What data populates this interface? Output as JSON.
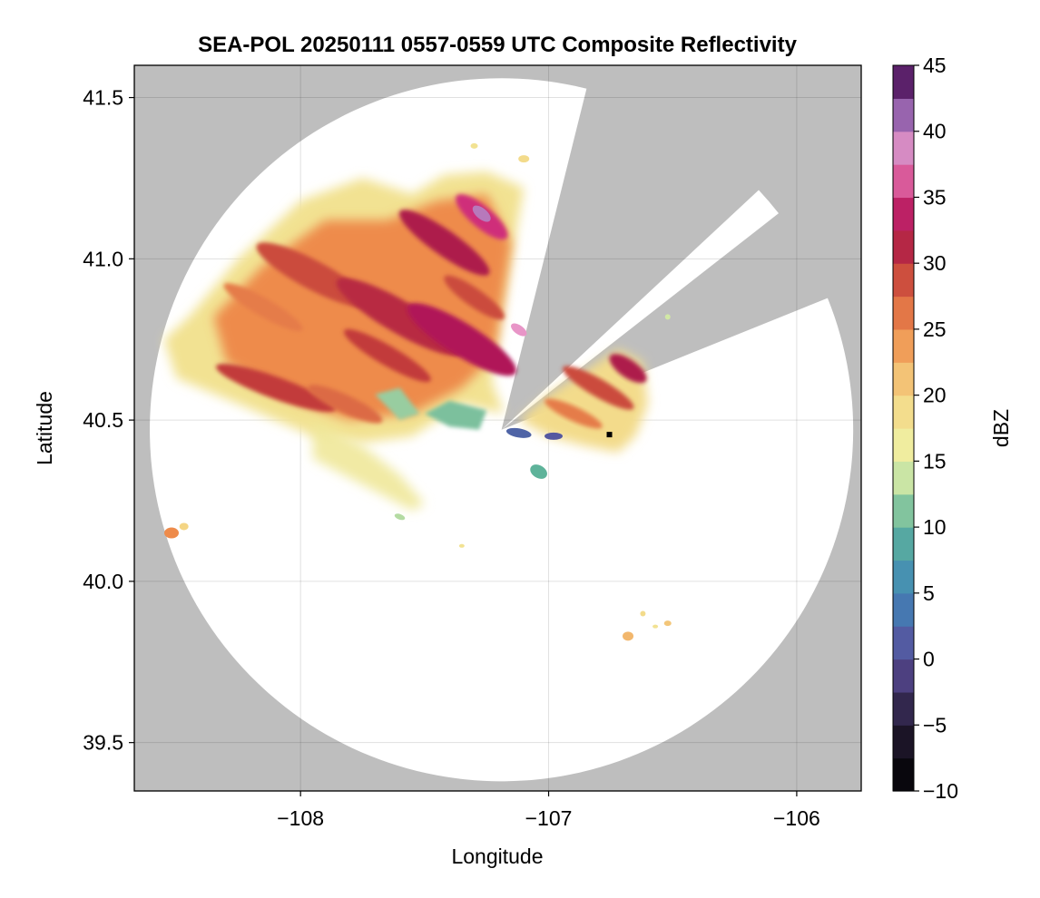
{
  "chart_data": {
    "type": "heatmap",
    "title": "SEA-POL 20250111 0557-0559 UTC Composite Reflectivity",
    "xlabel": "Longitude",
    "ylabel": "Latitude",
    "xlim": [
      -108.67,
      -105.74
    ],
    "ylim": [
      39.35,
      41.6
    ],
    "xticks": [
      -108,
      -107,
      -106
    ],
    "xtick_labels": [
      "−108",
      "−107",
      "−106"
    ],
    "yticks": [
      39.5,
      40.0,
      40.5,
      41.0,
      41.5
    ],
    "ytick_labels": [
      "39.5",
      "40.0",
      "40.5",
      "41.0",
      "41.5"
    ],
    "grid": true,
    "background_color": "#bebebe",
    "coverage_color": "#ffffff",
    "radar_center": {
      "lon": -107.19,
      "lat": 40.47
    },
    "coverage_radius_deg_lat": 1.09,
    "blocked_sectors_azimuth_deg": [
      [
        14,
        47
      ],
      [
        52,
        68
      ]
    ],
    "colorbar": {
      "label": "dBZ",
      "range": [
        -10,
        45
      ],
      "ticks": [
        -10,
        -5,
        0,
        5,
        10,
        15,
        20,
        25,
        30,
        35,
        40,
        45
      ],
      "tick_labels": [
        "−10",
        "−5",
        "0",
        "5",
        "10",
        "15",
        "20",
        "25",
        "30",
        "35",
        "40",
        "45"
      ],
      "step": 2.5,
      "colormap": "spectral_reversed"
    },
    "echo_regions": [
      {
        "name": "northwest band",
        "lon": [
          -108.45,
          -107.2
        ],
        "lat": [
          40.55,
          41.3
        ],
        "dbz_range": [
          15,
          38
        ]
      },
      {
        "name": "east band",
        "lon": [
          -107.15,
          -106.6
        ],
        "lat": [
          40.45,
          40.75
        ],
        "dbz_range": [
          15,
          32
        ]
      },
      {
        "name": "southwest fringe",
        "lon": [
          -107.9,
          -107.4
        ],
        "lat": [
          40.2,
          40.5
        ],
        "dbz_range": [
          10,
          25
        ]
      },
      {
        "name": "near-radar clutter",
        "lon": [
          -107.3,
          -107.0
        ],
        "lat": [
          40.28,
          40.5
        ],
        "dbz_range": [
          0,
          10
        ]
      },
      {
        "name": "isolated cells southeast",
        "lon": [
          -106.72,
          -106.5
        ],
        "lat": [
          39.8,
          39.92
        ],
        "dbz_range": [
          18,
          25
        ]
      },
      {
        "name": "isolated cell west",
        "lon": [
          -108.55,
          -108.45
        ],
        "lat": [
          40.12,
          40.17
        ],
        "dbz_range": [
          22,
          28
        ]
      }
    ]
  }
}
